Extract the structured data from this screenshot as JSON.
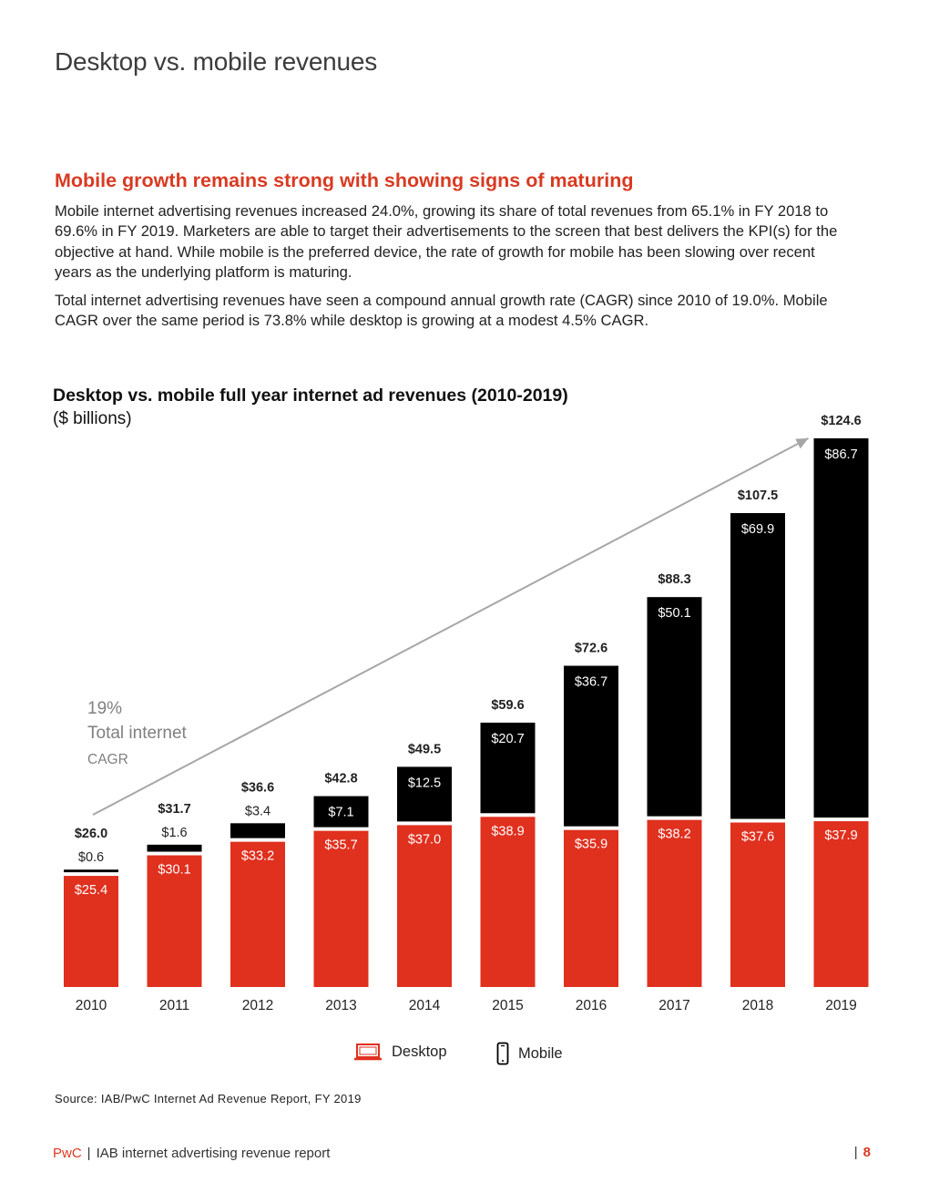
{
  "page": {
    "title": "Desktop vs. mobile revenues",
    "heading": "Mobile growth remains strong with showing signs of maturing",
    "paragraph1": "Mobile internet advertising revenues increased 24.0%, growing its share of total revenues from 65.1% in FY 2018 to 69.6% in FY 2019. Marketers are able to target their advertisements to the screen that best delivers the KPI(s) for the objective at hand. While mobile is the preferred device, the rate of growth for mobile has been slowing over recent years as the underlying platform is maturing.",
    "paragraph2": "Total internet advertising revenues have seen a compound annual growth rate (CAGR) since 2010 of 19.0%. Mobile CAGR over the same period is 73.8% while desktop is growing at a modest 4.5% CAGR.",
    "source": "Source: IAB/PwC Internet Ad Revenue Report, FY 2019",
    "footer_brand": "PwC",
    "footer_separator": "|",
    "footer_text": "IAB internet advertising revenue report",
    "page_number_separator": "|",
    "page_number": "8"
  },
  "chart_data": {
    "type": "bar",
    "stacked": true,
    "title": "Desktop vs. mobile full year internet ad revenues (2010-2019)",
    "subtitle": "($ billions)",
    "categories": [
      "2010",
      "2011",
      "2012",
      "2013",
      "2014",
      "2015",
      "2016",
      "2017",
      "2018",
      "2019"
    ],
    "series": [
      {
        "name": "Desktop",
        "color": "#e0301e",
        "values": [
          25.4,
          30.1,
          33.2,
          35.7,
          37.0,
          38.9,
          35.9,
          38.2,
          37.6,
          37.9
        ],
        "labels": [
          "$25.4",
          "$30.1",
          "$33.2",
          "$35.7",
          "$37.0",
          "$38.9",
          "$35.9",
          "$38.2",
          "$37.6",
          "$37.9"
        ]
      },
      {
        "name": "Mobile",
        "color": "#000000",
        "values": [
          0.6,
          1.6,
          3.4,
          7.1,
          12.5,
          20.7,
          36.7,
          50.1,
          69.9,
          86.7
        ],
        "labels": [
          "$0.6",
          "$1.6",
          "$3.4",
          "$7.1",
          "$12.5",
          "$20.7",
          "$36.7",
          "$50.1",
          "$69.9",
          "$86.7"
        ]
      }
    ],
    "totals": [
      26.0,
      31.7,
      36.6,
      42.8,
      49.5,
      59.6,
      72.6,
      88.3,
      107.5,
      124.6
    ],
    "total_labels": [
      "$26.0",
      "$31.7",
      "$36.6",
      "$42.8",
      "$49.5",
      "$59.6",
      "$72.6",
      "$88.3",
      "$107.5",
      "$124.6"
    ],
    "annotation": {
      "value": "19%",
      "line1": "Total internet",
      "line2": "CAGR",
      "arrow_color": "#a6a6a6",
      "text_color": "#7f7f7f"
    },
    "ylim": [
      0,
      124.6
    ],
    "grid": false,
    "legend": "bottom-center",
    "legend_icons": {
      "Desktop": "laptop-icon",
      "Mobile": "mobile-phone-icon"
    }
  }
}
